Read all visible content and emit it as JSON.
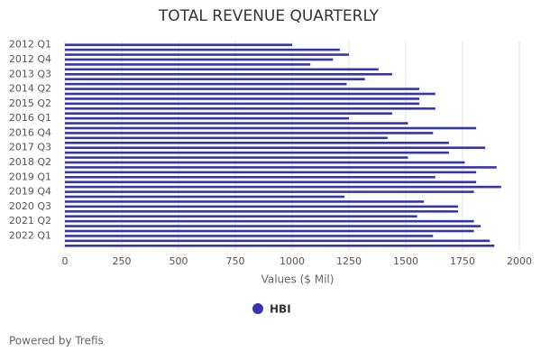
{
  "chart_data": {
    "type": "hbar",
    "title": "TOTAL REVENUE QUARTERLY",
    "xlabel": "Values ($ Mil)",
    "footer": "Powered by Trefis",
    "categories": [
      "2012 Q1",
      null,
      null,
      "2012 Q4",
      null,
      null,
      "2013 Q3",
      null,
      null,
      "2014 Q2",
      null,
      null,
      "2015 Q2",
      null,
      null,
      "2016 Q1",
      null,
      null,
      "2016 Q4",
      null,
      null,
      "2017 Q3",
      null,
      null,
      "2018 Q2",
      null,
      null,
      "2019 Q1",
      null,
      null,
      "2019 Q4",
      null,
      null,
      "2020 Q3",
      null,
      null,
      "2021 Q2",
      null,
      null,
      "2022 Q1",
      null,
      null
    ],
    "series": [
      {
        "name": "HBI",
        "color": "#3535b0",
        "values": [
          1000,
          1210,
          1250,
          1180,
          1080,
          1380,
          1440,
          1320,
          1240,
          1560,
          1630,
          1560,
          1560,
          1630,
          1440,
          1250,
          1510,
          1810,
          1620,
          1420,
          1690,
          1850,
          1690,
          1510,
          1760,
          1900,
          1810,
          1630,
          1810,
          1920,
          1800,
          1230,
          1580,
          1730,
          1730,
          1550,
          1800,
          1830,
          1800,
          1620,
          1870,
          1890
        ]
      }
    ],
    "xlim": [
      0,
      2000
    ],
    "xticks": [
      0,
      250,
      500,
      750,
      1000,
      1250,
      1500,
      1750,
      2000
    ],
    "grid": true,
    "legend": "bottom"
  }
}
